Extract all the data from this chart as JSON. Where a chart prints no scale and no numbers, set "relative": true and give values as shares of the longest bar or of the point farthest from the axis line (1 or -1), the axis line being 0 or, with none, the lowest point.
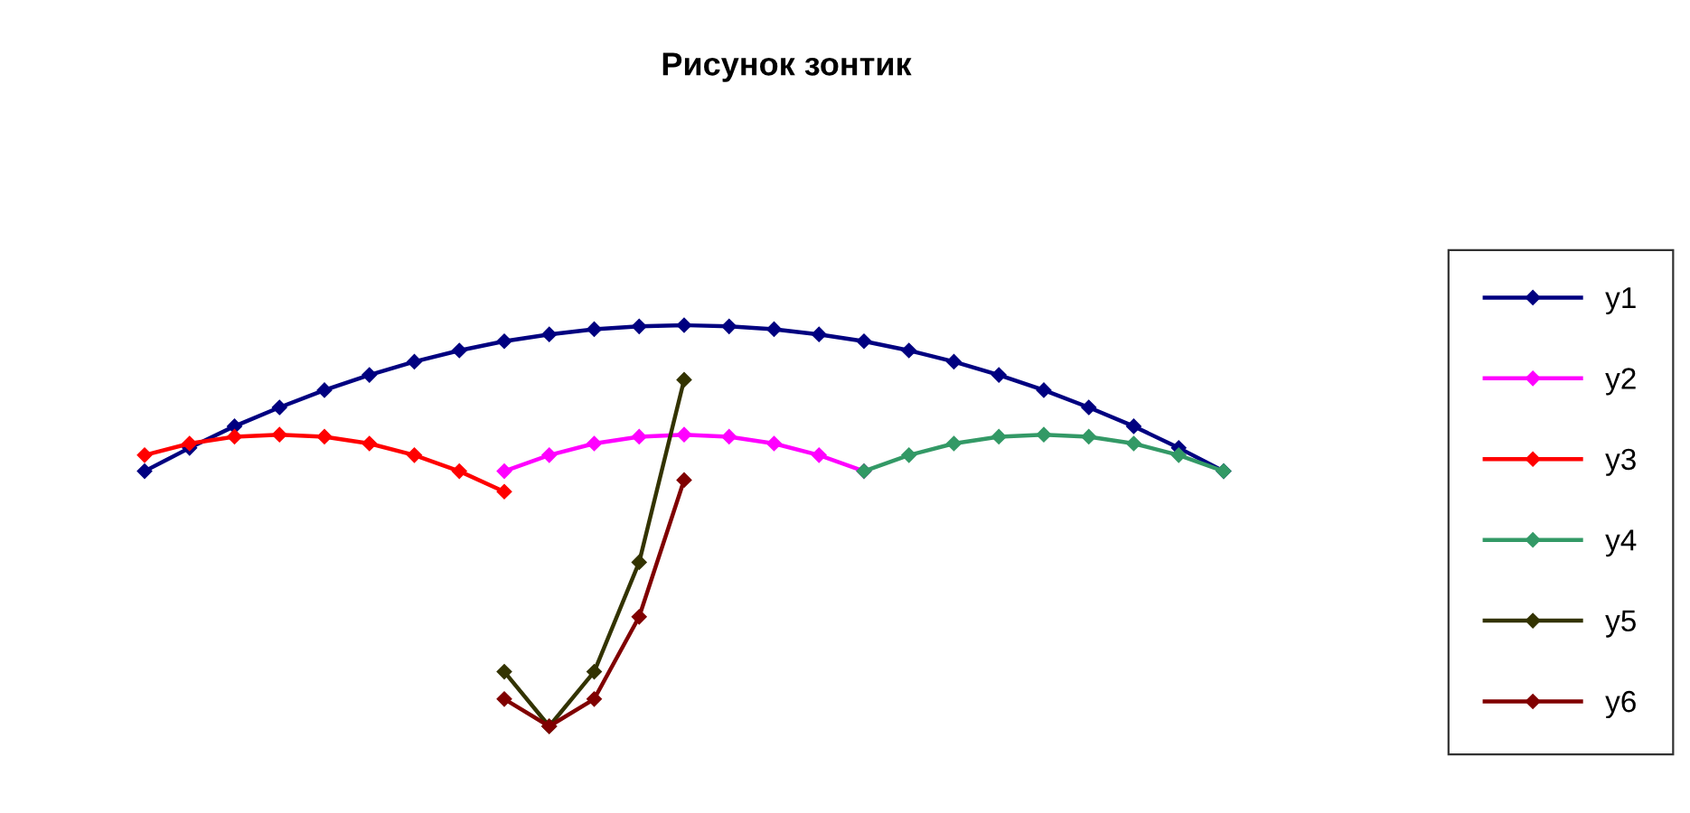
{
  "chart_data": {
    "type": "line",
    "title": "Рисунок зонтик",
    "relative": true,
    "marker": "diamond",
    "line_style": "solid",
    "legend": "right",
    "categories": [
      null,
      null,
      null,
      null,
      null,
      null,
      null,
      null,
      null,
      null,
      null,
      null,
      null,
      null,
      null,
      null,
      null,
      null,
      null,
      null,
      null,
      null,
      null,
      null,
      null
    ],
    "series": [
      {
        "name": "y1",
        "color": "#000080",
        "values": [
          0.636,
          0.694,
          0.748,
          0.795,
          0.838,
          0.876,
          0.909,
          0.937,
          0.96,
          0.977,
          0.99,
          0.997,
          1.0,
          0.997,
          0.99,
          0.977,
          0.96,
          0.937,
          0.909,
          0.876,
          0.838,
          0.795,
          0.748,
          0.694,
          0.636
        ]
      },
      {
        "name": "y2",
        "color": "#ff00ff",
        "values": [
          null,
          null,
          null,
          null,
          null,
          null,
          null,
          null,
          0.636,
          0.676,
          0.705,
          0.722,
          0.727,
          0.722,
          0.705,
          0.676,
          0.636,
          null,
          null,
          null,
          null,
          null,
          null,
          null,
          null
        ]
      },
      {
        "name": "y3",
        "color": "#ff0000",
        "values": [
          0.676,
          0.705,
          0.722,
          0.727,
          0.722,
          0.705,
          0.676,
          0.636,
          0.585,
          null,
          null,
          null,
          null,
          null,
          null,
          null,
          null,
          null,
          null,
          null,
          null,
          null,
          null,
          null,
          null
        ]
      },
      {
        "name": "y4",
        "color": "#339966",
        "values": [
          null,
          null,
          null,
          null,
          null,
          null,
          null,
          null,
          null,
          null,
          null,
          null,
          null,
          null,
          null,
          null,
          0.636,
          0.676,
          0.705,
          0.722,
          0.727,
          0.722,
          0.705,
          0.676,
          0.636
        ]
      },
      {
        "name": "y5",
        "color": "#333300",
        "values": [
          null,
          null,
          null,
          null,
          null,
          null,
          null,
          null,
          0.136,
          0.0,
          0.136,
          0.409,
          0.864,
          null,
          null,
          null,
          null,
          null,
          null,
          null,
          null,
          null,
          null,
          null,
          null
        ]
      },
      {
        "name": "y6",
        "color": "#800000",
        "values": [
          null,
          null,
          null,
          null,
          null,
          null,
          null,
          null,
          0.068,
          0.0,
          0.068,
          0.273,
          0.614,
          null,
          null,
          null,
          null,
          null,
          null,
          null,
          null,
          null,
          null,
          null,
          null
        ]
      }
    ]
  }
}
